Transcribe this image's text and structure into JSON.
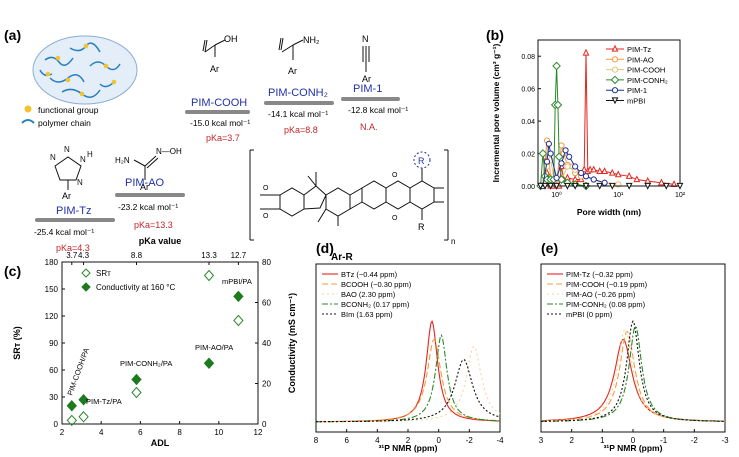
{
  "figure": {
    "panel_a": {
      "label": "(a)",
      "legend_functional_group": "functional group",
      "legend_polymer_chain": "polymer chain",
      "materials": [
        {
          "name": "PIM-COOH",
          "energy": "-15.0 kcal mol⁻¹",
          "pka": "pKa=3.7"
        },
        {
          "name": "PIM-CONH₂",
          "energy": "-14.1 kcal mol⁻¹",
          "pka": "pKa=8.8"
        },
        {
          "name": "PIM-1",
          "energy": "-12.8 kcal mol⁻¹",
          "pka": "N.A."
        },
        {
          "name": "PIM-Tz",
          "energy": "-25.4 kcal mol⁻¹",
          "pka": "pKa=4.3"
        },
        {
          "name": "PIM-AO",
          "energy": "-23.2 kcal mol⁻¹",
          "pka": "pKa=13.3"
        }
      ],
      "struct_labels": {
        "oh": "OH",
        "nh2": "NH₂",
        "n": "N",
        "h": "H",
        "ar": "Ar",
        "noh": "N—OH",
        "r": "R",
        "n_sub": "n",
        "arr": "Ar-R"
      }
    },
    "panel_b": {
      "label": "(b)",
      "colors": {
        "tz": "#e3261f",
        "ao": "#f39c3d",
        "cooh": "#e8c07d",
        "conh2": "#2a8a2a",
        "pim1": "#1f2f9a",
        "mpbi": "#111111"
      }
    },
    "panel_c": {
      "label": "(c)",
      "legend": [
        "SRᴛ",
        "Conductivity at 160 °C"
      ],
      "annotations": [
        "mPBI/PA",
        "PIM-AO/PA",
        "PIM-CONH₂/PA",
        "PIM-COOH/PA",
        "PIM-Tz/PA"
      ]
    },
    "panel_d": {
      "label": "(d)",
      "legend": [
        "BTz (−0.44 ppm)",
        "BCOOH (−0.30 ppm)",
        "BAO (2.30 ppm)",
        "BCONH₂ (0.17 ppm)",
        "BIm (1.63 ppm)"
      ]
    },
    "panel_e": {
      "label": "(e)",
      "legend": [
        "PIM-Tz (−0.32 ppm)",
        "PIM-COOH (−0.19 ppm)",
        "PIM-AO (−0.26 ppm)",
        "PIM-CONH₂ (0.08 ppm)",
        "mPBI  (0 ppm)"
      ]
    }
  },
  "chart_data": [
    {
      "type": "line",
      "panel": "b",
      "xlabel": "Pore width (nm)",
      "ylabel": "Incremental pore volume (cm³ g⁻¹)",
      "xscale": "log",
      "xlim": [
        0.5,
        100
      ],
      "ylim": [
        0,
        0.09
      ],
      "x_ticks": [
        {
          "v": 1,
          "label": "10⁰"
        },
        {
          "v": 10,
          "label": "10¹"
        },
        {
          "v": 100,
          "label": "10²"
        }
      ],
      "y_ticks": [
        0,
        0.02,
        0.04,
        0.06,
        0.08
      ],
      "y_tick_labels": [
        "0.00",
        "0.02",
        "0.04",
        "0.06",
        "0.08"
      ],
      "series": [
        {
          "name": "PIM-Tz",
          "color": "#e3261f",
          "marker": "triangle",
          "x": [
            0.6,
            0.65,
            0.7,
            0.75,
            0.8,
            0.9,
            1.0,
            1.1,
            1.2,
            1.3,
            1.5,
            2.0,
            2.5,
            2.8,
            3.0,
            3.2,
            3.5,
            4,
            5,
            6,
            8,
            10,
            15,
            20,
            30,
            50,
            80
          ],
          "y": [
            0.0,
            0.018,
            0.008,
            0.002,
            0.0,
            0.0,
            0.0,
            0.0,
            0.012,
            0.004,
            0.005,
            0.004,
            0.004,
            0.01,
            0.082,
            0.009,
            0.01,
            0.01,
            0.009,
            0.009,
            0.008,
            0.007,
            0.006,
            0.004,
            0.003,
            0.002,
            0.001
          ]
        },
        {
          "name": "PIM-AO",
          "color": "#f39c3d",
          "marker": "circle",
          "x": [
            0.6,
            0.7,
            0.75,
            0.8,
            1.0,
            1.2,
            1.3,
            1.5,
            1.8,
            2.0,
            2.5,
            3.0,
            4.0,
            6.0,
            10
          ],
          "y": [
            0.0,
            0.028,
            0.018,
            0.005,
            0.004,
            0.025,
            0.02,
            0.013,
            0.012,
            0.008,
            0.006,
            0.006,
            0.004,
            0.002,
            0.001
          ]
        },
        {
          "name": "PIM-COOH",
          "color": "#e8c07d",
          "marker": "circle",
          "x": [
            0.6,
            0.7,
            0.8,
            0.9,
            1.2,
            1.5,
            2.0,
            2.5,
            3.0,
            4.0,
            6.0,
            10
          ],
          "y": [
            0.0,
            0.012,
            0.016,
            0.006,
            0.004,
            0.012,
            0.01,
            0.008,
            0.006,
            0.004,
            0.002,
            0.001
          ]
        },
        {
          "name": "PIM-CONH₂",
          "color": "#2a8a2a",
          "marker": "diamond",
          "x": [
            0.55,
            0.6,
            0.65,
            0.7,
            0.8,
            0.9,
            0.95,
            1.0,
            1.05,
            1.1,
            1.2,
            1.5,
            2.0,
            3.0
          ],
          "y": [
            0.0,
            0.02,
            0.006,
            0.004,
            0.004,
            0.004,
            0.05,
            0.074,
            0.05,
            0.018,
            0.004,
            0.002,
            0.001,
            0.0
          ]
        },
        {
          "name": "PIM-1",
          "color": "#1f2f9a",
          "marker": "circle",
          "x": [
            0.6,
            0.7,
            0.75,
            0.8,
            1.0,
            1.2,
            1.4,
            1.6,
            2.0,
            2.5,
            3.0,
            4.0,
            6.0
          ],
          "y": [
            0.0,
            0.015,
            0.026,
            0.02,
            0.005,
            0.014,
            0.022,
            0.018,
            0.012,
            0.008,
            0.006,
            0.004,
            0.002
          ]
        },
        {
          "name": "mPBI",
          "color": "#111111",
          "marker": "triangle-down",
          "x": [
            0.55,
            0.65,
            0.8,
            1.0,
            1.5,
            2.0,
            3.0,
            5.0,
            8.0,
            15,
            30,
            60,
            100
          ],
          "y": [
            0,
            0,
            0,
            0,
            0,
            0,
            0,
            0,
            0,
            0,
            0,
            0,
            0
          ]
        }
      ]
    },
    {
      "type": "scatter",
      "panel": "c",
      "xlabel": "ADL",
      "ylabel_left": "SRᴛ (%)",
      "ylabel_right": "Conductivity (mS cm⁻¹)",
      "top_axis_label": "pKa  value",
      "top_ticks": [
        {
          "x": 2.5,
          "label": "3.7"
        },
        {
          "x": 3.1,
          "label": "4.3"
        },
        {
          "x": 5.8,
          "label": "8.8"
        },
        {
          "x": 9.5,
          "label": "13.3"
        },
        {
          "x": 11.0,
          "label": "12.7"
        }
      ],
      "xlim": [
        2,
        12
      ],
      "ylim_left": [
        0,
        180
      ],
      "ylim_right": [
        0,
        80
      ],
      "x_ticks": [
        2,
        4,
        6,
        8,
        10,
        12
      ],
      "y_ticks_left": [
        0,
        30,
        60,
        90,
        120,
        150,
        180
      ],
      "y_ticks_right": [
        0,
        20,
        40,
        60,
        80
      ],
      "series": [
        {
          "name": "SRᴛ",
          "marker": "open-diamond",
          "axis": "left",
          "x": [
            2.5,
            3.1,
            5.8,
            9.5,
            11.0
          ],
          "y": [
            4,
            8,
            35,
            165,
            115
          ]
        },
        {
          "name": "Conductivity at 160 °C",
          "marker": "filled-diamond",
          "axis": "right",
          "x": [
            2.5,
            3.1,
            5.8,
            9.5,
            11.0
          ],
          "y": [
            9,
            12,
            22,
            30,
            63
          ]
        }
      ]
    },
    {
      "type": "line",
      "panel": "d",
      "xlabel": "³¹P NMR (ppm)",
      "xlim": [
        8,
        -4
      ],
      "x_ticks": [
        8,
        6,
        4,
        2,
        0,
        -2,
        -4
      ],
      "series": [
        {
          "name": "BTz",
          "color": "#e3261f",
          "dash": "",
          "center": -0.44,
          "width": 0.45,
          "height": 1.0
        },
        {
          "name": "BCOOH",
          "color": "#f39c3d",
          "dash": "6 3",
          "center": -0.3,
          "width": 0.55,
          "height": 0.82
        },
        {
          "name": "BAO",
          "color": "#f3d59a",
          "dash": "2 3",
          "center": 2.3,
          "width": 0.6,
          "height": 0.75
        },
        {
          "name": "BCONH₂",
          "color": "#2a8a2a",
          "dash": "6 2 2 2",
          "center": 0.17,
          "width": 0.45,
          "height": 0.86
        },
        {
          "name": "BIm",
          "color": "#111111",
          "dash": "2 2",
          "center": 1.63,
          "width": 0.7,
          "height": 0.62
        }
      ]
    },
    {
      "type": "line",
      "panel": "e",
      "xlabel": "³¹P NMR (ppm)",
      "xlim": [
        3,
        -3
      ],
      "x_ticks": [
        3,
        2,
        1,
        0,
        -1,
        -2,
        -3
      ],
      "series": [
        {
          "name": "PIM-Tz",
          "color": "#e3261f",
          "dash": "",
          "center": -0.32,
          "width": 0.35,
          "height": 0.82
        },
        {
          "name": "PIM-COOH",
          "color": "#f39c3d",
          "dash": "6 3",
          "center": -0.19,
          "width": 0.3,
          "height": 0.9
        },
        {
          "name": "PIM-AO",
          "color": "#f3d59a",
          "dash": "2 3",
          "center": -0.26,
          "width": 0.3,
          "height": 0.92
        },
        {
          "name": "PIM-CONH₂",
          "color": "#2a8a2a",
          "dash": "6 2 2 2",
          "center": 0.08,
          "width": 0.25,
          "height": 0.95
        },
        {
          "name": "mPBI",
          "color": "#111111",
          "dash": "2 2",
          "center": 0.0,
          "width": 0.25,
          "height": 1.0
        }
      ]
    }
  ]
}
